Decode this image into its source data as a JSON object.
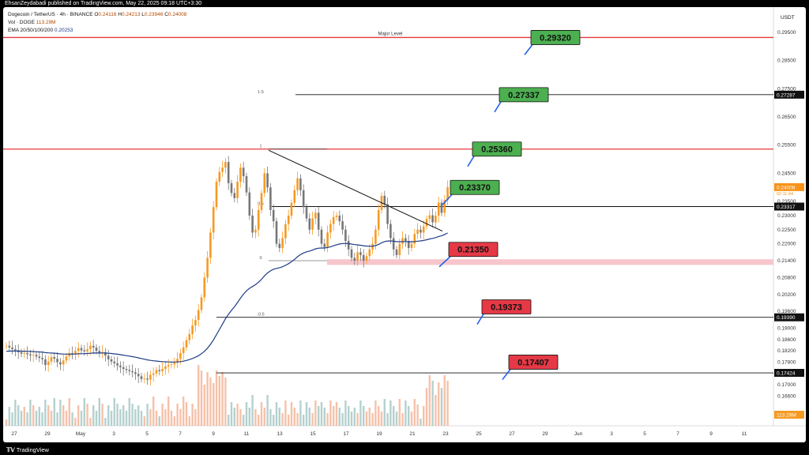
{
  "header": {
    "published": "EhsanZeydabadi published on TradingView.com, May 22, 2025 09:18 UTC+3:30"
  },
  "footer": {
    "brand": "TradingView"
  },
  "legend": {
    "symbol": "Dogecoin / TetherUS · 4h · BINANCE",
    "open_label": "O",
    "open": "0.24116",
    "high_label": "H",
    "high": "0.24213",
    "low_label": "L",
    "low": "0.23946",
    "close_label": "C",
    "close": "0.24008",
    "vol_label": "Vol · DOGE",
    "vol": "113.29M",
    "ema_label": "EMA 20/50/100/200",
    "ema": "0.20253"
  },
  "colors": {
    "up": "#f59a23",
    "down": "#777777",
    "ema": "#1f3c88",
    "red_level": "#e5383b",
    "green_badge": "#4caf50",
    "red_badge": "#e53946",
    "zone": "#f7c6cc",
    "vol_up": "#f4b69a",
    "vol_down": "#a7c9c6"
  },
  "chart_data": {
    "type": "candlestick",
    "symbol": "Dogecoin / TetherUS",
    "timeframe": "4h",
    "exchange": "BINANCE",
    "y_axis_title": "USDT",
    "ylim": [
      0.1615,
      0.299
    ],
    "y_ticks": [
      "0.29500",
      "0.28500",
      "0.27500",
      "0.26500",
      "0.25500",
      "0.24500",
      "0.23500",
      "0.23000",
      "0.22500",
      "0.22000",
      "0.21400",
      "0.20800",
      "0.20200",
      "0.19600",
      "0.19000",
      "0.18600",
      "0.18200",
      "0.17800",
      "0.17400",
      "0.17000",
      "0.16600"
    ],
    "x_ticks": [
      "27",
      "29",
      "May",
      "3",
      "5",
      "7",
      "9",
      "11",
      "13",
      "15",
      "17",
      "19",
      "21",
      "23",
      "25",
      "27",
      "29",
      "Jun",
      "3",
      "5",
      "7",
      "9",
      "11"
    ],
    "price_labels": {
      "last": "0.24008",
      "countdown": "02:11:44",
      "level_1": "0.23317",
      "level_2": "0.19390",
      "level_3": "0.17424",
      "level_4": "0.27287",
      "volume": "113.29M"
    },
    "horizontal_levels": [
      {
        "price": 0.2932,
        "style": "red",
        "label": "Major Level"
      },
      {
        "price": 0.2729,
        "style": "black"
      },
      {
        "price": 0.2536,
        "style": "red"
      },
      {
        "price": 0.2332,
        "style": "black"
      },
      {
        "price": 0.1939,
        "style": "black"
      },
      {
        "price": 0.1742,
        "style": "black"
      }
    ],
    "badges": [
      {
        "text": "0.29320",
        "kind": "green"
      },
      {
        "text": "0.27337",
        "kind": "green"
      },
      {
        "text": "0.25360",
        "kind": "green"
      },
      {
        "text": "0.23370",
        "kind": "green"
      },
      {
        "text": "0.21350",
        "kind": "red"
      },
      {
        "text": "0.19373",
        "kind": "red"
      },
      {
        "text": "0.17407",
        "kind": "red"
      }
    ],
    "fib_labels": [
      "1.5",
      "1",
      "0.5",
      "0",
      "-0.5"
    ],
    "support_zone": [
      0.2125,
      0.2145
    ],
    "closes": [
      0.1838,
      0.1832,
      0.1826,
      0.1822,
      0.1815,
      0.181,
      0.1812,
      0.1808,
      0.1804,
      0.1806,
      0.18,
      0.1795,
      0.179,
      0.177,
      0.1782,
      0.1798,
      0.1792,
      0.178,
      0.1772,
      0.1786,
      0.18,
      0.1812,
      0.1808,
      0.182,
      0.183,
      0.1822,
      0.1818,
      0.1826,
      0.1838,
      0.1832,
      0.182,
      0.1812,
      0.1815,
      0.1803,
      0.179,
      0.1782,
      0.1776,
      0.1768,
      0.1762,
      0.1756,
      0.1752,
      0.1748,
      0.1744,
      0.1738,
      0.173,
      0.172,
      0.1722,
      0.1718,
      0.1735,
      0.174,
      0.1752,
      0.1748,
      0.1756,
      0.1765,
      0.177,
      0.1772,
      0.1778,
      0.1792,
      0.1812,
      0.1832,
      0.1858,
      0.188,
      0.191,
      0.193,
      0.1965,
      0.201,
      0.208,
      0.215,
      0.224,
      0.233,
      0.242,
      0.2455,
      0.247,
      0.249,
      0.2415,
      0.238,
      0.2362,
      0.242,
      0.247,
      0.244,
      0.2382,
      0.23,
      0.224,
      0.225,
      0.232,
      0.238,
      0.245,
      0.24,
      0.232,
      0.228,
      0.22,
      0.2185,
      0.222,
      0.227,
      0.23,
      0.2345,
      0.239,
      0.2432,
      0.239,
      0.233,
      0.229,
      0.225,
      0.229,
      0.231,
      0.225,
      0.22,
      0.2188,
      0.224,
      0.227,
      0.2295,
      0.23,
      0.228,
      0.225,
      0.221,
      0.218,
      0.215,
      0.214,
      0.217,
      0.216,
      0.214,
      0.2156,
      0.218,
      0.22,
      0.225,
      0.232,
      0.237,
      0.234,
      0.227,
      0.222,
      0.218,
      0.216,
      0.22,
      0.222,
      0.221,
      0.2185,
      0.22,
      0.2235,
      0.225,
      0.224,
      0.2262,
      0.2288,
      0.2301,
      0.2276,
      0.23,
      0.2346,
      0.231,
      0.2355,
      0.2401
    ]
  }
}
